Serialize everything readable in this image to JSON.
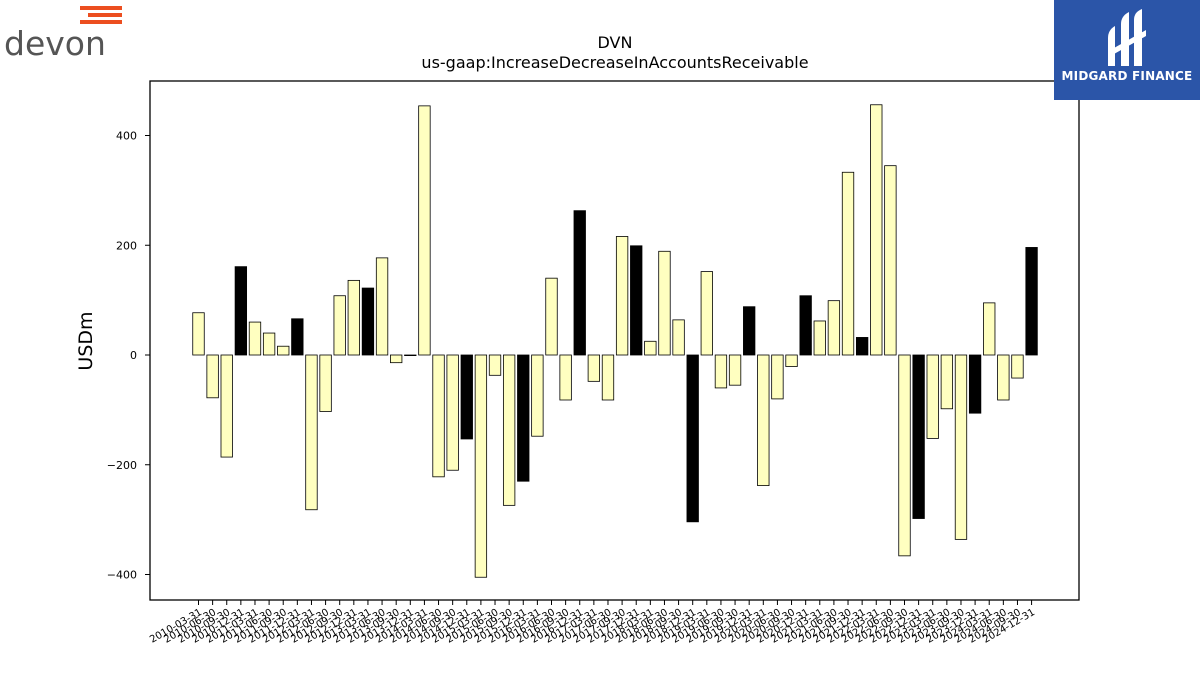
{
  "brand_left": {
    "name": "devon",
    "bar_color": "#ec4e20",
    "text_color": "#555555"
  },
  "brand_right": {
    "name": "MIDGARD FINANCE",
    "bg_color": "#2b55a8"
  },
  "chart_data": {
    "type": "bar",
    "title": "DVN",
    "subtitle": "us-gaap:IncreaseDecreaseInAccountsReceivable",
    "xlabel": "",
    "ylabel": "USDm",
    "ylim": [
      -450,
      500
    ],
    "yticks": [
      -400,
      -200,
      0,
      200,
      400
    ],
    "grid": false,
    "colors": {
      "normal": "#ffffc0",
      "highlight": "#000000",
      "edge": "#000000"
    },
    "categories": [
      "2010-03-31",
      "2010-06-30",
      "2010-09-30",
      "2010-12-31",
      "2011-03-31",
      "2011-06-30",
      "2011-09-30",
      "2011-12-31",
      "2012-03-31",
      "2012-06-30",
      "2012-09-30",
      "2012-12-31",
      "2013-03-31",
      "2013-06-30",
      "2013-09-30",
      "2013-12-31",
      "2014-03-31",
      "2014-06-30",
      "2014-09-30",
      "2014-12-31",
      "2015-03-31",
      "2015-06-30",
      "2015-09-30",
      "2015-12-31",
      "2016-03-31",
      "2016-06-30",
      "2016-09-30",
      "2016-12-31",
      "2017-03-31",
      "2017-06-30",
      "2017-09-30",
      "2017-12-31",
      "2018-03-31",
      "2018-06-30",
      "2018-09-30",
      "2018-12-31",
      "2019-03-31",
      "2019-06-30",
      "2019-09-30",
      "2019-12-31",
      "2020-03-31",
      "2020-06-30",
      "2020-09-30",
      "2020-12-31",
      "2021-03-31",
      "2021-06-30",
      "2021-09-30",
      "2021-12-31",
      "2022-03-31",
      "2022-06-30",
      "2022-09-30",
      "2022-12-31",
      "2023-03-31",
      "2023-06-30",
      "2023-09-30",
      "2023-12-31",
      "2024-03-31",
      "2024-06-30",
      "2024-09-30",
      "2024-12-31"
    ],
    "values": [
      77,
      -78,
      -186,
      161,
      60,
      40,
      16,
      66,
      -282,
      -103,
      108,
      136,
      122,
      177,
      -14,
      0,
      454,
      -222,
      -210,
      -153,
      -405,
      -37,
      -274,
      -230,
      -148,
      140,
      -82,
      263,
      -48,
      -82,
      216,
      199,
      25,
      189,
      64,
      -304,
      152,
      -60,
      -55,
      88,
      -238,
      -80,
      -21,
      108,
      62,
      99,
      333,
      32,
      456,
      345,
      -366,
      -298,
      -152,
      -98,
      -336,
      -106,
      95,
      -82,
      -42,
      196
    ],
    "highlight_indices": [
      3,
      7,
      12,
      19,
      23,
      27,
      31,
      35,
      39,
      43,
      47,
      51,
      55,
      59
    ]
  }
}
